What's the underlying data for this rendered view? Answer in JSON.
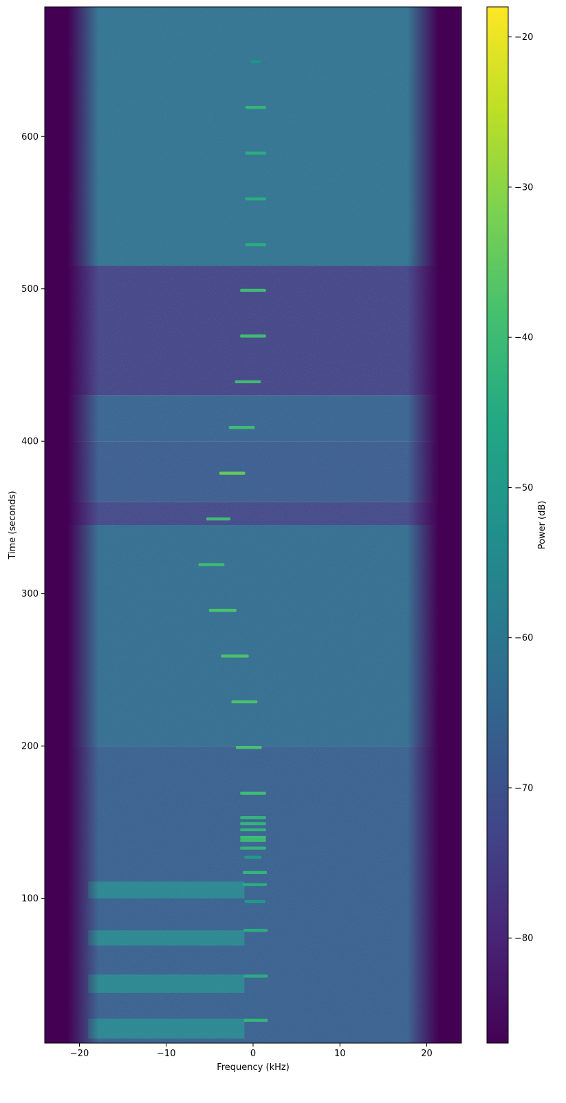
{
  "chart_data": {
    "type": "heatmap",
    "xlabel": "Frequency (kHz)",
    "ylabel": "Time (seconds)",
    "xlim": [
      -24,
      24
    ],
    "ylim": [
      5,
      685
    ],
    "x_ticks": [
      -20,
      -10,
      0,
      10,
      20
    ],
    "y_ticks": [
      100,
      200,
      300,
      400,
      500,
      600
    ],
    "colorbar": {
      "label": "Power (dB)",
      "range": [
        -87,
        -18
      ],
      "ticks": [
        -20,
        -30,
        -40,
        -50,
        -60,
        -70,
        -80
      ],
      "colormap": "viridis"
    },
    "background_bands": [
      {
        "t_start": 515,
        "t_end": 685,
        "level_db": -61
      },
      {
        "t_start": 430,
        "t_end": 515,
        "level_db": -75
      },
      {
        "t_start": 400,
        "t_end": 430,
        "level_db": -66
      },
      {
        "t_start": 360,
        "t_end": 400,
        "level_db": -68
      },
      {
        "t_start": 345,
        "t_end": 360,
        "level_db": -74
      },
      {
        "t_start": 200,
        "t_end": 345,
        "level_db": -63
      },
      {
        "t_start": 5,
        "t_end": 200,
        "level_db": -67
      }
    ],
    "broadband_bursts": [
      {
        "t_start": 100,
        "t_end": 111,
        "f_start": -19,
        "f_end": -1,
        "level_db": -55
      },
      {
        "t_start": 69,
        "t_end": 79,
        "f_start": -19,
        "f_end": -1,
        "level_db": -55
      },
      {
        "t_start": 38,
        "t_end": 50,
        "f_start": -19,
        "f_end": -1,
        "level_db": -55
      },
      {
        "t_start": 8,
        "t_end": 21,
        "f_start": -19,
        "f_end": -1,
        "level_db": -55
      }
    ],
    "tones": [
      {
        "t": 649,
        "f": 0.3,
        "width_khz": 1.2,
        "level_db": -52
      },
      {
        "t": 619,
        "f": 0.3,
        "width_khz": 2.4,
        "level_db": -42
      },
      {
        "t": 589,
        "f": 0.3,
        "width_khz": 2.4,
        "level_db": -44
      },
      {
        "t": 559,
        "f": 0.3,
        "width_khz": 2.4,
        "level_db": -44
      },
      {
        "t": 529,
        "f": 0.3,
        "width_khz": 2.4,
        "level_db": -44
      },
      {
        "t": 499,
        "f": 0.0,
        "width_khz": 3.0,
        "level_db": -40
      },
      {
        "t": 469,
        "f": 0.0,
        "width_khz": 3.0,
        "level_db": -40
      },
      {
        "t": 439,
        "f": -0.6,
        "width_khz": 3.0,
        "level_db": -40
      },
      {
        "t": 409,
        "f": -1.3,
        "width_khz": 3.0,
        "level_db": -40
      },
      {
        "t": 379,
        "f": -2.4,
        "width_khz": 3.0,
        "level_db": -35
      },
      {
        "t": 349,
        "f": -4.0,
        "width_khz": 2.8,
        "level_db": -40
      },
      {
        "t": 319,
        "f": -4.8,
        "width_khz": 3.0,
        "level_db": -40
      },
      {
        "t": 289,
        "f": -3.5,
        "width_khz": 3.2,
        "level_db": -38
      },
      {
        "t": 259,
        "f": -2.1,
        "width_khz": 3.2,
        "level_db": -38
      },
      {
        "t": 229,
        "f": -1.0,
        "width_khz": 3.0,
        "level_db": -38
      },
      {
        "t": 199,
        "f": -0.5,
        "width_khz": 3.0,
        "level_db": -38
      },
      {
        "t": 169,
        "f": 0.0,
        "width_khz": 3.0,
        "level_db": -40
      },
      {
        "t": 153,
        "f": 0.0,
        "width_khz": 3.0,
        "level_db": -42
      },
      {
        "t": 149,
        "f": 0.0,
        "width_khz": 3.0,
        "level_db": -42
      },
      {
        "t": 145,
        "f": 0.0,
        "width_khz": 3.0,
        "level_db": -42
      },
      {
        "t": 140,
        "f": 0.0,
        "width_khz": 3.0,
        "level_db": -40
      },
      {
        "t": 138,
        "f": 0.0,
        "width_khz": 3.0,
        "level_db": -40
      },
      {
        "t": 133,
        "f": 0.0,
        "width_khz": 3.0,
        "level_db": -42
      },
      {
        "t": 127,
        "f": 0.0,
        "width_khz": 2.0,
        "level_db": -50
      },
      {
        "t": 117,
        "f": 0.2,
        "width_khz": 2.8,
        "level_db": -42
      },
      {
        "t": 109,
        "f": 0.2,
        "width_khz": 2.8,
        "level_db": -44
      },
      {
        "t": 98,
        "f": 0.2,
        "width_khz": 2.4,
        "level_db": -50
      },
      {
        "t": 79,
        "f": 0.3,
        "width_khz": 2.8,
        "level_db": -44
      },
      {
        "t": 49,
        "f": 0.3,
        "width_khz": 2.8,
        "level_db": -44
      },
      {
        "t": 20,
        "f": 0.3,
        "width_khz": 2.8,
        "level_db": -42
      }
    ]
  }
}
